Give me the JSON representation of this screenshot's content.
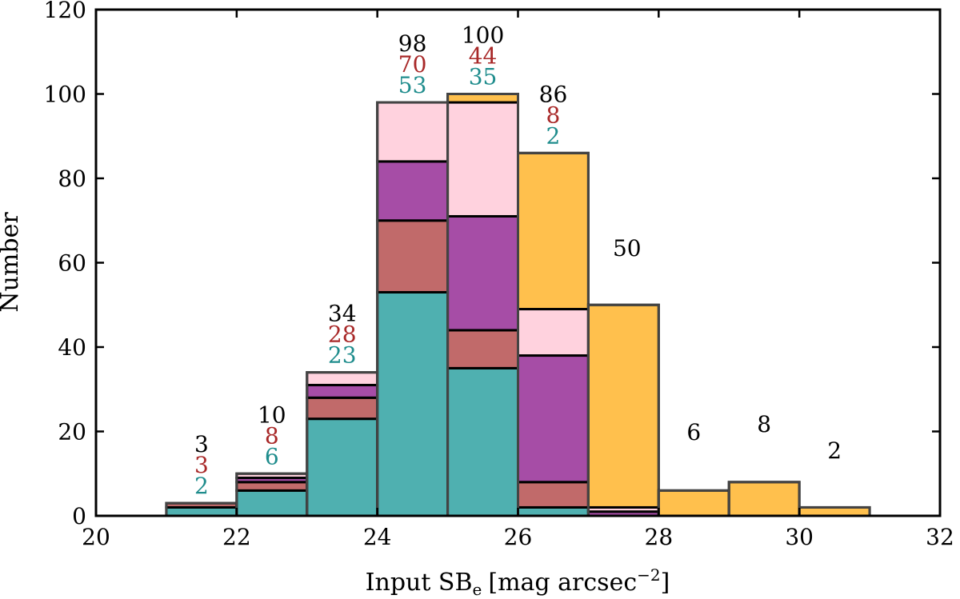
{
  "chart_data": {
    "type": "bar",
    "stacked": true,
    "xlabel": "Input SB",
    "xlabel_sub": "e",
    "xlabel_unit": "[mag arcsec",
    "xlabel_sup": "−2",
    "xlabel_close": "]",
    "ylabel": "Number",
    "xlim": [
      20,
      32
    ],
    "ylim": [
      0,
      120
    ],
    "xticks": [
      "20",
      "22",
      "24",
      "26",
      "28",
      "30",
      "32"
    ],
    "yticks": [
      "0",
      "20",
      "40",
      "60",
      "80",
      "100",
      "120"
    ],
    "bin_edges": [
      21,
      22,
      23,
      24,
      25,
      26,
      27,
      28,
      29,
      30,
      31
    ],
    "series": [
      {
        "color": "#4fb0b0",
        "values": [
          2,
          6,
          23,
          53,
          35,
          2,
          0,
          0,
          0,
          0
        ]
      },
      {
        "color": "#c16a6a",
        "values": [
          1,
          2,
          5,
          17,
          9,
          6,
          0,
          0,
          0,
          0
        ]
      },
      {
        "color": "#a64da6",
        "values": [
          0,
          1,
          3,
          14,
          27,
          30,
          1,
          0,
          0,
          0
        ]
      },
      {
        "color": "#ffd2de",
        "values": [
          0,
          1,
          3,
          14,
          27,
          11,
          1,
          0,
          0,
          0
        ]
      },
      {
        "color": "#ffc04d",
        "values": [
          0,
          0,
          0,
          0,
          2,
          37,
          48,
          6,
          8,
          2
        ]
      }
    ],
    "labels": {
      "totals": [
        "3",
        "10",
        "34",
        "98",
        "100",
        "86",
        "50",
        "6",
        "8",
        "2"
      ],
      "red": [
        "3",
        "8",
        "28",
        "70",
        "44",
        "8"
      ],
      "teal": [
        "2",
        "6",
        "23",
        "53",
        "35",
        "2"
      ],
      "colors": {
        "total": "#000000",
        "red": "#a82828",
        "teal": "#1e8c8c"
      }
    },
    "grid": false
  }
}
